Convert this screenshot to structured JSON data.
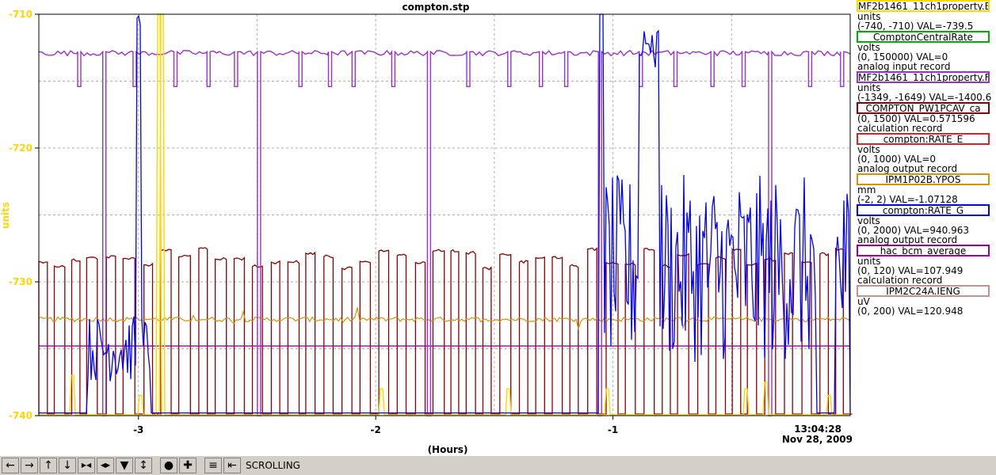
{
  "chart_data": {
    "type": "line",
    "title": "compton.stp",
    "ylabel": "units",
    "xlabel": "(Hours)",
    "ylim": [
      -740,
      -710
    ],
    "xlim": [
      -3.42,
      0
    ],
    "y_ticks": [
      "-710",
      "-720",
      "-730",
      "-740"
    ],
    "x_ticks": [
      "-3",
      "-2",
      "-1"
    ],
    "timestamp": [
      "13:04:28",
      "Nov 28, 2009"
    ],
    "grid": true,
    "y_axis_color": "#ffd700",
    "series": [
      {
        "name": "MF2b1461_11ch1property.E",
        "color": "#ffd700",
        "units": "units",
        "range": "(-740, -710)",
        "val": "VAL=-739.5",
        "type_line": ""
      },
      {
        "name": "ComptonCentralRate",
        "color": "#00b000",
        "units": "volts",
        "range": "(0, 150000)",
        "val": "VAL=0",
        "type_line": "analog input record"
      },
      {
        "name": "MF2b1461_11ch1property.F",
        "color": "#9b30d0",
        "units": "units",
        "range": "(-1349, -1649)",
        "val": "VAL=-1400.6",
        "type_line": ""
      },
      {
        "name": "COMPTON_PW1PCAV_ca",
        "color": "#8b0000",
        "units": "",
        "range": "(0, 1500)",
        "val": "VAL=0.571596",
        "type_line": "calculation record"
      },
      {
        "name": "compton:RATE_E",
        "color": "#e02020",
        "units": "volts",
        "range": "(0, 1000)",
        "val": "VAL=0",
        "type_line": "analog output record"
      },
      {
        "name": "IPM1P02B.YPOS",
        "color": "#d4940a",
        "units": "mm",
        "range": "(-2, 2)",
        "val": "VAL=-1.07128",
        "type_line": ""
      },
      {
        "name": "compton:RATE_G",
        "color": "#0000ff",
        "units": "volts",
        "range": "(0, 2000)",
        "val": "VAL=940.963",
        "type_line": "analog output record"
      },
      {
        "name": "hac_bcm_average",
        "color": "#9b009b",
        "units": "units",
        "range": "(0, 120)",
        "val": "VAL=107.949",
        "type_line": "calculation record"
      },
      {
        "name": "IPM2C24A.IENG",
        "color": "#c89090",
        "units": "uV",
        "range": "(0, 200)",
        "val": "VAL=120.948",
        "type_line": ""
      }
    ],
    "reference_lines": [
      {
        "series": "hac_bcm_average",
        "y": -734.8
      }
    ]
  },
  "toolbar": {
    "buttons": [
      "arrow-left-icon",
      "arrow-right-icon",
      "arrow-up-icon",
      "arrow-down-icon",
      "shrink-horizontal-icon",
      "expand-horizontal-icon",
      "shrink-vertical-icon",
      "expand-vertical-icon",
      "record-icon",
      "crosshair-icon",
      "fit-icon",
      "back-icon"
    ],
    "status": "SCROLLING"
  }
}
